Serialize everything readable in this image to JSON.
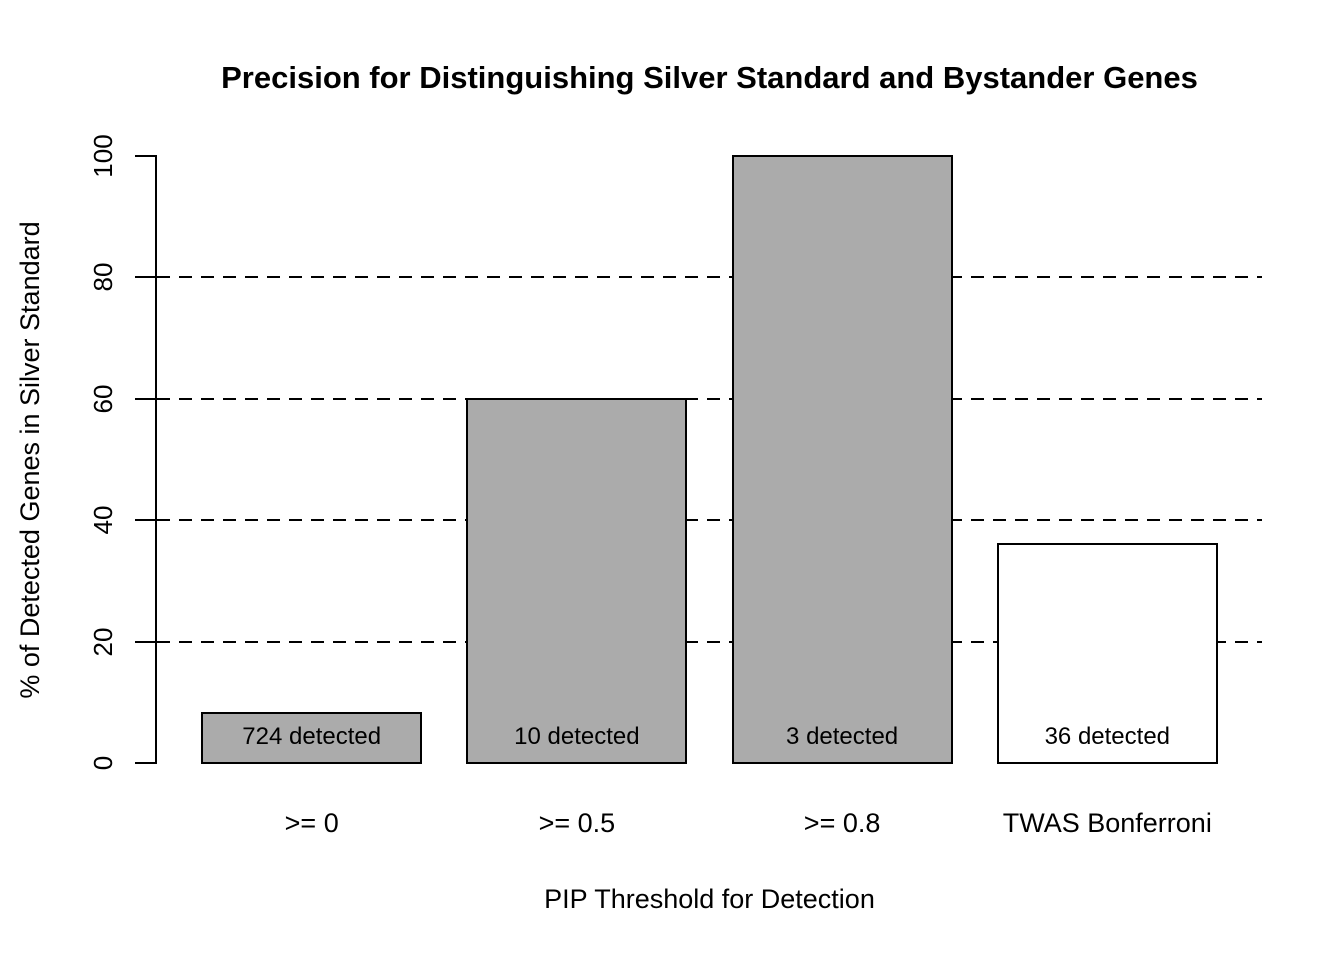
{
  "chart_data": {
    "type": "bar",
    "title": "Precision for Distinguishing Silver Standard and Bystander Genes",
    "xlabel": "PIP Threshold for Detection",
    "ylabel": "% of Detected Genes in Silver Standard",
    "categories": [
      ">= 0",
      ">= 0.5",
      ">= 0.8",
      "TWAS Bonferroni"
    ],
    "values": [
      8.2,
      60,
      100,
      36.1
    ],
    "bar_labels": [
      "724 detected",
      "10 detected",
      "3 detected",
      "36 detected"
    ],
    "bar_fills": [
      "#ababab",
      "#ababab",
      "#ababab",
      "#ffffff"
    ],
    "bar_border_color": "#000000",
    "yticks": [
      0,
      20,
      40,
      60,
      80,
      100
    ],
    "gridlines": [
      20,
      40,
      60,
      80
    ],
    "grid_style": "dashed",
    "grid_color": "#000000",
    "ylim": [
      0,
      100
    ],
    "legend": "none",
    "text_color": "#000000",
    "background_color": "#ffffff"
  }
}
